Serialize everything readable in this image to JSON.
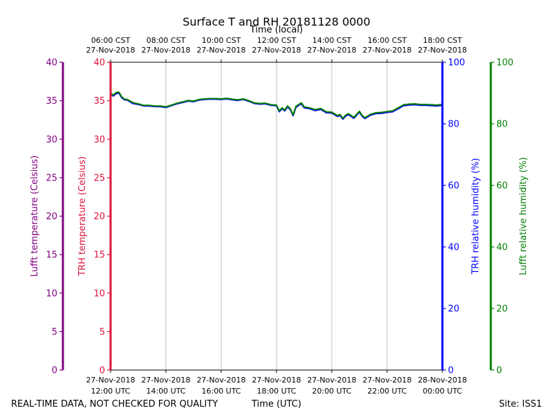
{
  "chart_data": {
    "type": "line",
    "title": "Surface T and RH 20181128 0000",
    "top_axis_label": "Time (local)",
    "xlabel": "Time (UTC)",
    "footer_left": "REAL-TIME DATA, NOT CHECKED FOR QUALITY",
    "footer_right": "Site: ISS1",
    "axes": {
      "lufft_temp": {
        "label": "Lufft temperature (Celsius)",
        "range": [
          0,
          40
        ],
        "ticks": [
          "0",
          "5",
          "10",
          "15",
          "20",
          "25",
          "30",
          "35",
          "40"
        ],
        "color": "#800080"
      },
      "trh_temp": {
        "label": "TRH temperature (Celsius)",
        "range": [
          0,
          40
        ],
        "ticks": [
          "0",
          "5",
          "10",
          "15",
          "20",
          "25",
          "30",
          "35",
          "40"
        ],
        "color": "#dc143c"
      },
      "trh_rh": {
        "label": "TRH relative humidity (%)",
        "range": [
          0,
          100
        ],
        "ticks": [
          "0",
          "20",
          "40",
          "60",
          "80",
          "100"
        ],
        "color": "#0000ff"
      },
      "lufft_rh": {
        "label": "Lufft relative humidity (%)",
        "range": [
          0,
          100
        ],
        "ticks": [
          "0",
          "20",
          "40",
          "60",
          "80",
          "100"
        ],
        "color": "#008000"
      }
    },
    "x_range_hours_utc": [
      12,
      24
    ],
    "grid": "vertical",
    "bottom_ticks": [
      {
        "line1": "27-Nov-2018",
        "line2": "12:00 UTC"
      },
      {
        "line1": "27-Nov-2018",
        "line2": "14:00 UTC"
      },
      {
        "line1": "27-Nov-2018",
        "line2": "16:00 UTC"
      },
      {
        "line1": "27-Nov-2018",
        "line2": "18:00 UTC"
      },
      {
        "line1": "27-Nov-2018",
        "line2": "20:00 UTC"
      },
      {
        "line1": "27-Nov-2018",
        "line2": "22:00 UTC"
      },
      {
        "line1": "28-Nov-2018",
        "line2": "00:00 UTC"
      }
    ],
    "top_ticks": [
      {
        "line1": "06:00 CST",
        "line2": "27-Nov-2018"
      },
      {
        "line1": "08:00 CST",
        "line2": "27-Nov-2018"
      },
      {
        "line1": "10:00 CST",
        "line2": "27-Nov-2018"
      },
      {
        "line1": "12:00 CST",
        "line2": "27-Nov-2018"
      },
      {
        "line1": "14:00 CST",
        "line2": "27-Nov-2018"
      },
      {
        "line1": "16:00 CST",
        "line2": "27-Nov-2018"
      },
      {
        "line1": "18:00 CST",
        "line2": "27-Nov-2018"
      }
    ],
    "series": [
      {
        "name": "TRH relative humidity (%)",
        "axis": "trh_rh",
        "color": "#0000ff",
        "x_hours_utc": [
          12.0,
          12.1,
          12.2,
          12.3,
          12.4,
          12.5,
          12.6,
          12.8,
          13.0,
          13.2,
          13.4,
          13.6,
          13.8,
          14.0,
          14.2,
          14.4,
          14.6,
          14.8,
          15.0,
          15.2,
          15.4,
          15.6,
          15.8,
          16.0,
          16.2,
          16.4,
          16.6,
          16.8,
          17.0,
          17.2,
          17.4,
          17.6,
          17.8,
          18.0,
          18.1,
          18.2,
          18.3,
          18.4,
          18.5,
          18.6,
          18.7,
          18.8,
          18.9,
          19.0,
          19.2,
          19.4,
          19.6,
          19.8,
          20.0,
          20.2,
          20.3,
          20.4,
          20.5,
          20.6,
          20.8,
          21.0,
          21.1,
          21.2,
          21.4,
          21.6,
          21.8,
          22.0,
          22.2,
          22.4,
          22.6,
          22.8,
          23.0,
          23.2,
          23.4,
          23.6,
          23.8,
          24.0
        ],
        "values": [
          89.8,
          89.0,
          89.8,
          90.0,
          88.5,
          87.8,
          87.7,
          86.6,
          86.3,
          85.8,
          85.8,
          85.6,
          85.6,
          85.3,
          85.9,
          86.5,
          86.9,
          87.4,
          87.2,
          87.7,
          87.9,
          88.0,
          88.0,
          87.9,
          88.1,
          87.8,
          87.6,
          87.9,
          87.3,
          86.6,
          86.4,
          86.5,
          86.0,
          85.9,
          83.9,
          84.9,
          84.2,
          85.5,
          84.6,
          82.6,
          85.3,
          86.0,
          86.5,
          85.2,
          84.9,
          84.3,
          84.7,
          83.6,
          83.5,
          82.4,
          82.7,
          81.5,
          82.5,
          83.0,
          81.8,
          83.8,
          82.4,
          81.7,
          82.8,
          83.3,
          83.4,
          83.7,
          83.9,
          84.9,
          85.9,
          86.1,
          86.2,
          86.0,
          86.0,
          85.9,
          85.8,
          86.0
        ]
      },
      {
        "name": "Lufft relative humidity (%)",
        "axis": "lufft_rh",
        "color": "#008000",
        "x_hours_utc": [
          12.0,
          12.1,
          12.2,
          12.3,
          12.4,
          12.5,
          12.6,
          12.8,
          13.0,
          13.2,
          13.4,
          13.6,
          13.8,
          14.0,
          14.2,
          14.4,
          14.6,
          14.8,
          15.0,
          15.2,
          15.4,
          15.6,
          15.8,
          16.0,
          16.2,
          16.4,
          16.6,
          16.8,
          17.0,
          17.2,
          17.4,
          17.6,
          17.8,
          18.0,
          18.1,
          18.2,
          18.3,
          18.4,
          18.5,
          18.6,
          18.7,
          18.8,
          18.9,
          19.0,
          19.2,
          19.4,
          19.6,
          19.8,
          20.0,
          20.2,
          20.3,
          20.4,
          20.5,
          20.6,
          20.8,
          21.0,
          21.1,
          21.2,
          21.4,
          21.6,
          21.8,
          22.0,
          22.2,
          22.4,
          22.6,
          22.8,
          23.0,
          23.2,
          23.4,
          23.6,
          23.8,
          24.0
        ],
        "values": [
          90.0,
          89.3,
          90.2,
          90.3,
          88.8,
          88.0,
          87.9,
          86.9,
          86.5,
          86.0,
          86.0,
          85.8,
          85.8,
          85.5,
          86.1,
          86.7,
          87.1,
          87.6,
          87.4,
          87.9,
          88.1,
          88.2,
          88.2,
          88.1,
          88.3,
          88.0,
          87.8,
          88.1,
          87.5,
          86.8,
          86.6,
          86.7,
          86.2,
          86.1,
          84.2,
          85.2,
          84.5,
          85.8,
          84.9,
          82.9,
          85.6,
          86.3,
          86.8,
          85.5,
          85.2,
          84.6,
          85.0,
          83.9,
          83.8,
          82.7,
          83.0,
          81.8,
          82.8,
          83.3,
          82.1,
          84.1,
          82.7,
          82.0,
          83.1,
          83.6,
          83.7,
          84.0,
          84.2,
          85.2,
          86.2,
          86.4,
          86.5,
          86.3,
          86.3,
          86.2,
          86.1,
          86.3
        ]
      }
    ]
  }
}
